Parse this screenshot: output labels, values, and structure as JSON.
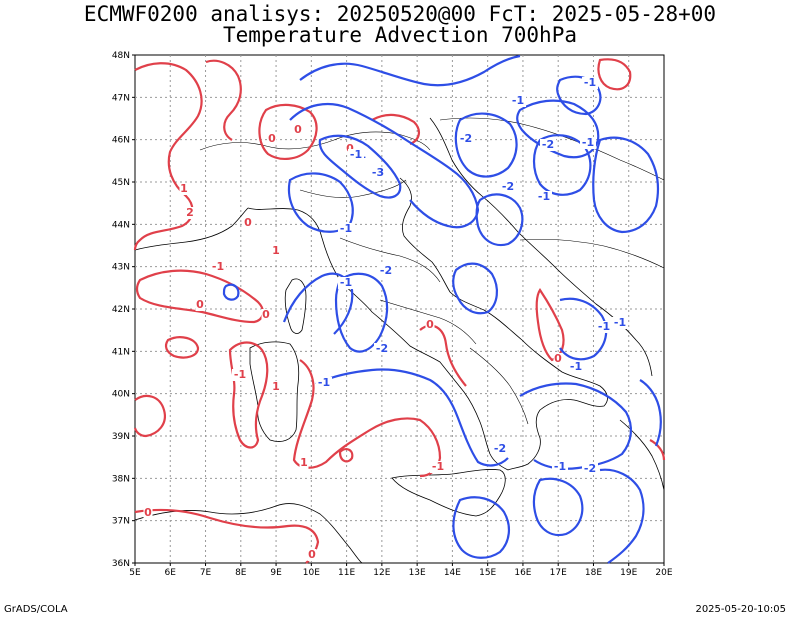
{
  "title_line1": "ECMWF0200 analisys: 20250520@00 FcT: 2025-05-28+00",
  "title_line2": "Temperature Advection 700hPa",
  "footer_left": "GrADS/COLA",
  "footer_right": "2025-05-20-10:05",
  "lon_labels": [
    "5E",
    "6E",
    "7E",
    "8E",
    "9E",
    "10E",
    "11E",
    "12E",
    "13E",
    "14E",
    "15E",
    "16E",
    "17E",
    "18E",
    "19E",
    "20E"
  ],
  "lat_labels": [
    "48N",
    "47N",
    "46N",
    "45N",
    "44N",
    "43N",
    "42N",
    "41N",
    "40N",
    "39N",
    "38N",
    "37N",
    "36N"
  ],
  "colors": {
    "positive": "#e0404a",
    "negative": "#2e4ee6",
    "grid": "#9a9a9a",
    "coast": "#000000"
  },
  "contour_labels": {
    "positive": [
      "0",
      "1",
      "2",
      "0",
      "1",
      "-1",
      "0",
      "0",
      "-1",
      "1",
      "1",
      "-1",
      "0",
      "0",
      "0",
      "0",
      "0",
      "0"
    ],
    "negative": [
      "-1",
      "-2",
      "-3",
      "-1",
      "-2",
      "-1",
      "-1",
      "-2",
      "-1",
      "-1",
      "-2",
      "-1",
      "-1",
      "-2",
      "-1",
      "-1",
      "-1",
      "-2",
      "-2",
      "-1",
      "-1"
    ]
  }
}
